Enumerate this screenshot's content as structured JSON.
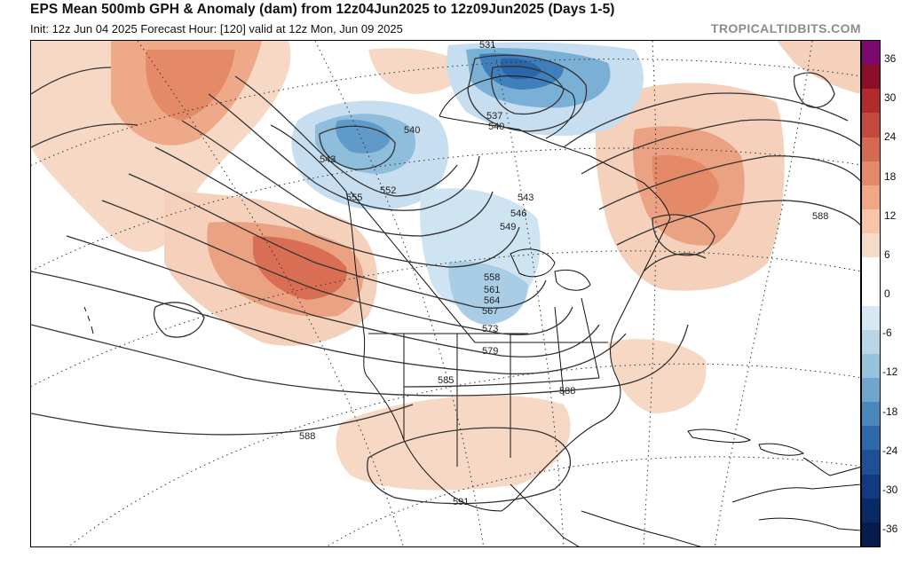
{
  "header": {
    "title": "EPS Mean 500mb GPH & Anomaly (dam) from 12z04Jun2025 to 12z09Jun2025 (Days 1-5)",
    "subtitle": "Init: 12z Jun 04 2025   Forecast Hour: [120]   valid at 12z Mon, Jun 09 2025",
    "watermark": "TROPICALTIDBITS.COM"
  },
  "colorbar": {
    "labels": [
      "36",
      "30",
      "24",
      "18",
      "12",
      "6",
      "0",
      "-6",
      "-12",
      "-18",
      "-24",
      "-30",
      "-36"
    ],
    "colors": [
      "#e6ccb4",
      "#f5dcc8",
      "#f7c4a8",
      "#f0a884",
      "#e48a68",
      "#d46a52",
      "#c44a40",
      "#b02a2e",
      "#8a0f26",
      "#6e0030",
      "#6a1a7a",
      "#ffffff",
      "#d6e8f2",
      "#b8d6e8",
      "#96c2dc",
      "#6fa6cc",
      "#4a88bc",
      "#2e6aaa",
      "#1e5096",
      "#123a80",
      "#0a2a66",
      "#061c4c"
    ]
  },
  "contour_labels": [
    "531",
    "537",
    "540",
    "540",
    "543",
    "543",
    "546",
    "549",
    "552",
    "555",
    "558",
    "561",
    "564",
    "567",
    "573",
    "579",
    "585",
    "588",
    "588",
    "588",
    "591"
  ]
}
